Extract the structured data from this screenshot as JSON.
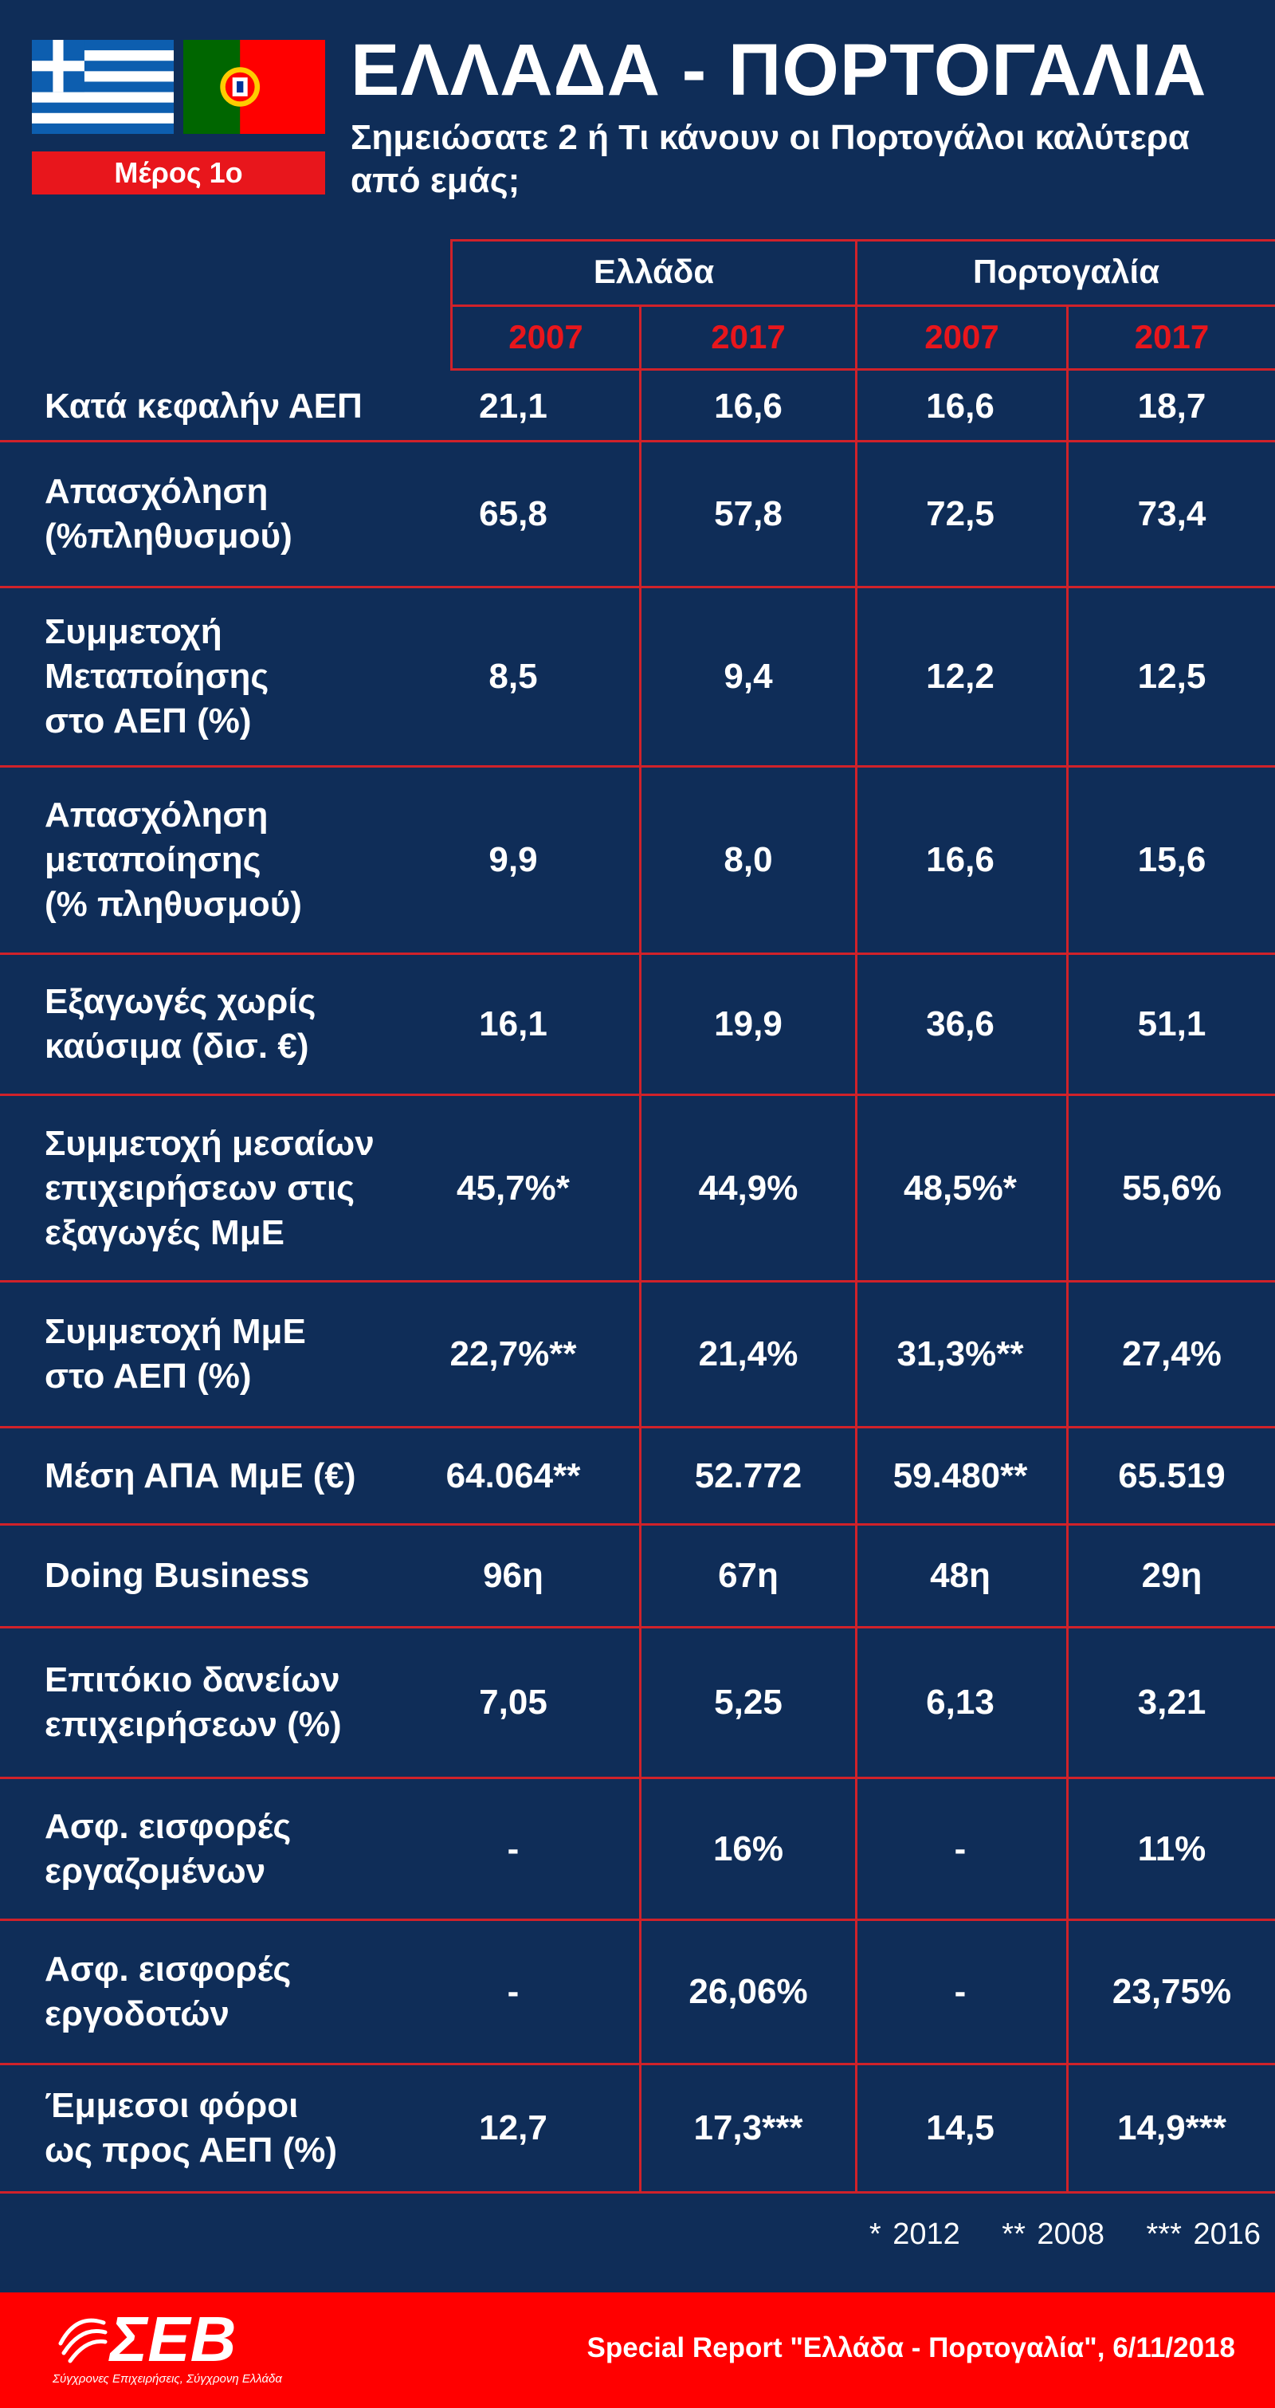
{
  "header": {
    "title": "ΕΛΛΑΔΑ - ΠΟΡΤΟΓΑΛΙΑ",
    "subtitle": "Σημειώσατε 2  ή  Τι κάνουν οι Πορτογάλοι καλύτερα από εμάς;",
    "part_badge": "Μέρος 1ο",
    "flags": [
      "greece-flag",
      "portugal-flag"
    ]
  },
  "table": {
    "countries": [
      "Ελλάδα",
      "Πορτογαλία"
    ],
    "years": [
      "2007",
      "2017",
      "2007",
      "2017"
    ],
    "rows": [
      {
        "label": "Κατά κεφαλήν ΑΕΠ",
        "values": [
          "21,1",
          "16,6",
          "16,6",
          "18,7"
        ]
      },
      {
        "label": "Απασχόληση\n(%πληθυσμού)",
        "values": [
          "65,8",
          "57,8",
          "72,5",
          "73,4"
        ]
      },
      {
        "label": "Συμμετοχή\nΜεταποίησης\nστο ΑΕΠ (%)",
        "values": [
          "8,5",
          "9,4",
          "12,2",
          "12,5"
        ]
      },
      {
        "label": "Απασχόληση\nμεταποίησης\n(% πληθυσμού)",
        "values": [
          "9,9",
          "8,0",
          "16,6",
          "15,6"
        ]
      },
      {
        "label": "Εξαγωγές χωρίς\nκαύσιμα (δισ. €)",
        "values": [
          "16,1",
          "19,9",
          "36,6",
          "51,1"
        ]
      },
      {
        "label": "Συμμετοχή μεσαίων\nεπιχειρήσεων στις\nεξαγωγές ΜμΕ",
        "values": [
          "45,7%*",
          "44,9%",
          "48,5%*",
          "55,6%"
        ]
      },
      {
        "label": "Συμμετοχή ΜμΕ\nστο ΑΕΠ (%)",
        "values": [
          "22,7%**",
          "21,4%",
          "31,3%**",
          "27,4%"
        ]
      },
      {
        "label": "Μέση ΑΠΑ ΜμΕ (€)",
        "values": [
          "64.064**",
          "52.772",
          "59.480**",
          "65.519"
        ]
      },
      {
        "label": "Doing Business",
        "values": [
          "96η",
          "67η",
          "48η",
          "29η"
        ]
      },
      {
        "label": "Επιτόκιο δανείων\nεπιχειρήσεων (%)",
        "values": [
          "7,05",
          "5,25",
          "6,13",
          "3,21"
        ]
      },
      {
        "label": "Ασφ. εισφορές\nεργαζομένων",
        "values": [
          "-",
          "16%",
          "-",
          "11%"
        ]
      },
      {
        "label": "Ασφ. εισφορές\nεργοδοτών",
        "values": [
          "-",
          "26,06%",
          "-",
          "23,75%"
        ]
      },
      {
        "label": "Έμμεσοι φόροι\nως προς ΑΕΠ (%)",
        "values": [
          "12,7",
          "17,3***",
          "14,5",
          "14,9***"
        ]
      }
    ]
  },
  "footnotes": [
    "* 2012",
    "** 2008",
    "*** 2016"
  ],
  "footer": {
    "logo_text": "ΣΕΒ",
    "logo_tagline": "Σύγχρονες Επιχειρήσεις, Σύγχρονη Ελλάδα",
    "report": "Special Report \"Ελλάδα - Πορτογαλία\", 6/11/2018"
  },
  "colors": {
    "background": "#0f2d58",
    "accent_red": "#e8161c",
    "grid_line": "#d0222a",
    "text": "#ffffff"
  }
}
